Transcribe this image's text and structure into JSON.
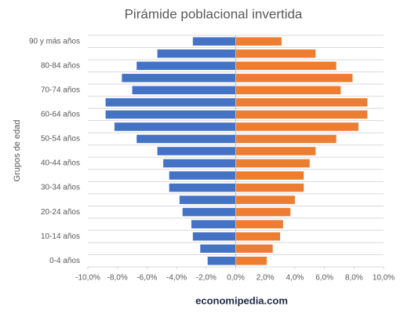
{
  "chart_data": {
    "type": "bar",
    "orientation": "horizontal",
    "stacked": true,
    "title": "Pirámide poblacional invertida",
    "y_label": "Grupos de edad",
    "footer": "economipedia.com",
    "categories": [
      "0-4 años",
      null,
      "10-14 años",
      null,
      "20-24 años",
      null,
      "30-34 años",
      null,
      "40-44 años",
      null,
      "50-54 años",
      null,
      "60-64 años",
      null,
      "70-74 años",
      null,
      "80-84 años",
      null,
      "90 y más años"
    ],
    "series": [
      {
        "color": "#4472c4",
        "values": [
          -1.9,
          -2.4,
          -2.9,
          -3.0,
          -3.6,
          -3.8,
          -4.5,
          -4.5,
          -4.9,
          -5.3,
          -6.7,
          -8.2,
          -8.8,
          -8.8,
          -7.0,
          -7.7,
          -6.7,
          -5.3,
          -2.9
        ]
      },
      {
        "color": "#ed7d31",
        "values": [
          2.1,
          2.5,
          3.0,
          3.2,
          3.7,
          4.0,
          4.6,
          4.6,
          5.0,
          5.4,
          6.8,
          8.3,
          8.9,
          8.9,
          7.1,
          7.9,
          6.8,
          5.4,
          3.1
        ]
      }
    ],
    "xlim": [
      -10,
      10
    ],
    "xticks": [
      {
        "value": -10,
        "label": "-10,0%"
      },
      {
        "value": -8,
        "label": "-8,0%"
      },
      {
        "value": -6,
        "label": "-6,0%"
      },
      {
        "value": -4,
        "label": "-4,0%"
      },
      {
        "value": -2,
        "label": "-2,0%"
      },
      {
        "value": 0,
        "label": "0,0%"
      },
      {
        "value": 2,
        "label": "2,0%"
      },
      {
        "value": 4,
        "label": "4,0%"
      },
      {
        "value": 6,
        "label": "6,0%"
      },
      {
        "value": 8,
        "label": "8,0%"
      },
      {
        "value": 10,
        "label": "10,0%"
      }
    ],
    "grid": true
  }
}
